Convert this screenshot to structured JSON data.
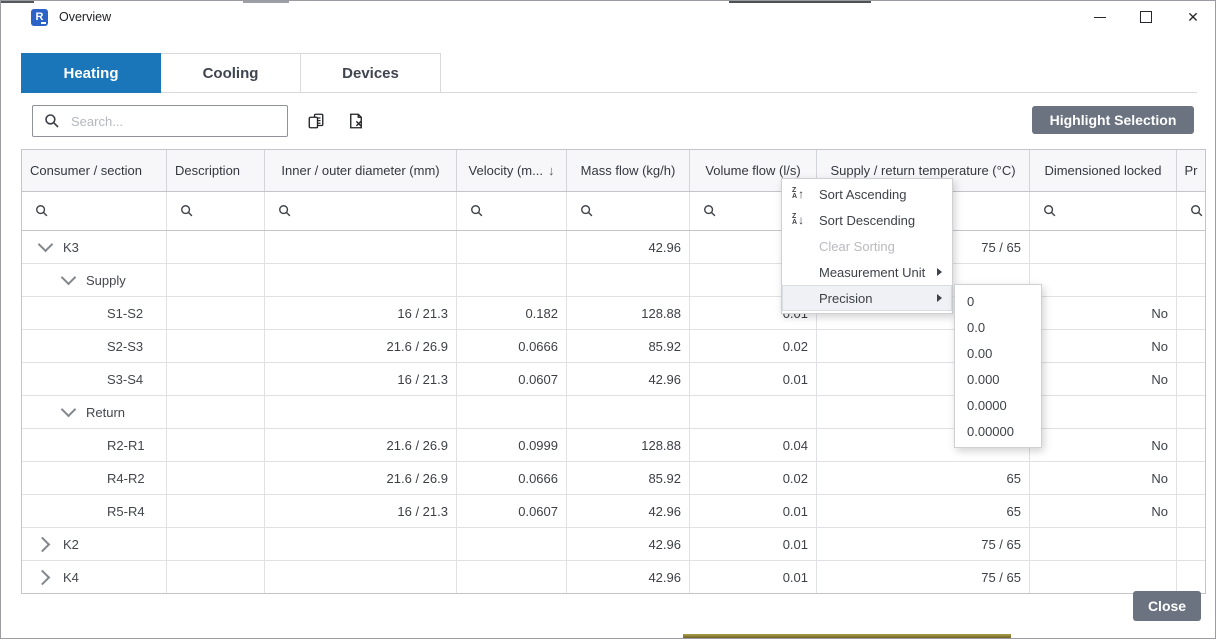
{
  "window": {
    "title": "Overview"
  },
  "tabs": [
    {
      "label": "Heating",
      "active": true
    },
    {
      "label": "Cooling",
      "active": false
    },
    {
      "label": "Devices",
      "active": false
    }
  ],
  "toolbar": {
    "search_placeholder": "Search...",
    "highlight_button_label": "Highlight Selection"
  },
  "table": {
    "columns": [
      {
        "label": "Consumer / section"
      },
      {
        "label": "Description"
      },
      {
        "label": "Inner / outer diameter (mm)"
      },
      {
        "label": "Velocity (m...",
        "sort_indicator": "↓"
      },
      {
        "label": "Mass flow (kg/h)"
      },
      {
        "label": "Volume flow (l/s)"
      },
      {
        "label": "Supply / return temperature (°C)"
      },
      {
        "label": "Dimensioned locked"
      },
      {
        "label": "Pr"
      }
    ],
    "rows": [
      {
        "name": "K3",
        "level": 0,
        "expander": "expanded",
        "description": "",
        "diameter": "",
        "velocity": "",
        "mass_flow": "42.96",
        "volume_flow": "",
        "temperature": "75 / 65",
        "locked": "",
        "pr": ""
      },
      {
        "name": "Supply",
        "level": 1,
        "expander": "expanded",
        "description": "",
        "diameter": "",
        "velocity": "",
        "mass_flow": "",
        "volume_flow": "",
        "temperature": "",
        "locked": "",
        "pr": ""
      },
      {
        "name": "S1-S2",
        "level": 2,
        "expander": "none",
        "description": "",
        "diameter": "16 / 21.3",
        "velocity": "0.182",
        "mass_flow": "128.88",
        "volume_flow": "0.01",
        "temperature": "",
        "locked": "No",
        "pr": ""
      },
      {
        "name": "S2-S3",
        "level": 2,
        "expander": "none",
        "description": "",
        "diameter": "21.6 / 26.9",
        "velocity": "0.0666",
        "mass_flow": "85.92",
        "volume_flow": "0.02",
        "temperature": "",
        "locked": "No",
        "pr": ""
      },
      {
        "name": "S3-S4",
        "level": 2,
        "expander": "none",
        "description": "",
        "diameter": "16 / 21.3",
        "velocity": "0.0607",
        "mass_flow": "42.96",
        "volume_flow": "0.01",
        "temperature": "",
        "locked": "No",
        "pr": ""
      },
      {
        "name": "Return",
        "level": 1,
        "expander": "expanded",
        "description": "",
        "diameter": "",
        "velocity": "",
        "mass_flow": "",
        "volume_flow": "",
        "temperature": "",
        "locked": "",
        "pr": ""
      },
      {
        "name": "R2-R1",
        "level": 2,
        "expander": "none",
        "description": "",
        "diameter": "21.6 / 26.9",
        "velocity": "0.0999",
        "mass_flow": "128.88",
        "volume_flow": "0.04",
        "temperature": "",
        "locked": "No",
        "pr": ""
      },
      {
        "name": "R4-R2",
        "level": 2,
        "expander": "none",
        "description": "",
        "diameter": "21.6 / 26.9",
        "velocity": "0.0666",
        "mass_flow": "85.92",
        "volume_flow": "0.02",
        "temperature": "65",
        "locked": "No",
        "pr": ""
      },
      {
        "name": "R5-R4",
        "level": 2,
        "expander": "none",
        "description": "",
        "diameter": "16 / 21.3",
        "velocity": "0.0607",
        "mass_flow": "42.96",
        "volume_flow": "0.01",
        "temperature": "65",
        "locked": "No",
        "pr": ""
      },
      {
        "name": "K2",
        "level": 0,
        "expander": "collapsed",
        "description": "",
        "diameter": "",
        "velocity": "",
        "mass_flow": "42.96",
        "volume_flow": "0.01",
        "temperature": "75 / 65",
        "locked": "",
        "pr": ""
      },
      {
        "name": "K4",
        "level": 0,
        "expander": "collapsed",
        "description": "",
        "diameter": "",
        "velocity": "",
        "mass_flow": "42.96",
        "volume_flow": "0.01",
        "temperature": "75 / 65",
        "locked": "",
        "pr": ""
      }
    ]
  },
  "context_menu": {
    "items": [
      {
        "label": "Sort Ascending",
        "icon": "sort-ascending",
        "disabled": false,
        "submenu": false,
        "highlighted": false
      },
      {
        "label": "Sort Descending",
        "icon": "sort-descending",
        "disabled": false,
        "submenu": false,
        "highlighted": false
      },
      {
        "label": "Clear Sorting",
        "icon": "",
        "disabled": true,
        "submenu": false,
        "highlighted": false
      },
      {
        "label": "Measurement Unit",
        "icon": "",
        "disabled": false,
        "submenu": true,
        "highlighted": false
      },
      {
        "label": "Precision",
        "icon": "",
        "disabled": false,
        "submenu": true,
        "highlighted": true
      }
    ],
    "precision_options": [
      "0",
      "0.0",
      "0.00",
      "0.000",
      "0.0000",
      "0.00000"
    ]
  },
  "footer": {
    "close_label": "Close"
  },
  "icons": {
    "app": "R-logo",
    "search": "magnifier",
    "copy": "copy-table",
    "clear_filter": "clear-filter",
    "sort_ascending": "ZA-up-arrow",
    "sort_descending": "ZA-down-arrow",
    "submenu_arrow": "right-triangle",
    "minimize": "minus",
    "maximize": "square",
    "close": "✕",
    "collapse": "chevron-down",
    "expand": "chevron-right",
    "sort_indicator": "↓"
  },
  "colors": {
    "accent_blue": "#1a76b8",
    "button_gray": "#6b7280",
    "taskbar_strip": "#6e5f21"
  }
}
